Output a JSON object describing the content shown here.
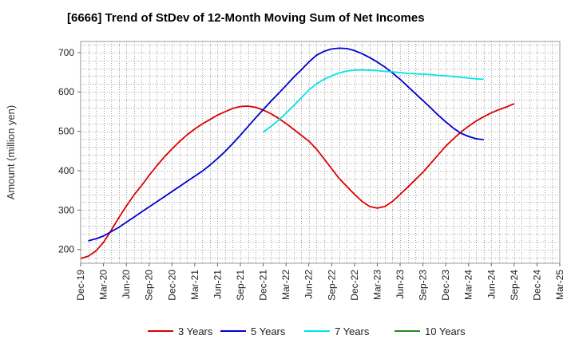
{
  "chart_data": {
    "type": "line",
    "title": "[6666]  Trend of StDev of 12-Month Moving Sum of Net Incomes",
    "xlabel": "",
    "ylabel": "Amount (million yen)",
    "ylim": [
      165,
      728
    ],
    "yticks": [
      200,
      300,
      400,
      500,
      600,
      700
    ],
    "x_ticks": [
      "Dec-19",
      "Mar-20",
      "Jun-20",
      "Sep-20",
      "Dec-20",
      "Mar-21",
      "Jun-21",
      "Sep-21",
      "Dec-21",
      "Mar-22",
      "Jun-22",
      "Sep-22",
      "Dec-22",
      "Mar-23",
      "Jun-23",
      "Sep-23",
      "Dec-23",
      "Mar-24",
      "Jun-24",
      "Sep-24",
      "Dec-24",
      "Mar-25"
    ],
    "grid": true,
    "legend_position": "bottom",
    "series": [
      {
        "name": "3 Years",
        "color": "#dd0000",
        "values": [
          177,
          183,
          196,
          218,
          248,
          280,
          310,
          338,
          362,
          388,
          412,
          435,
          455,
          474,
          491,
          506,
          519,
          530,
          541,
          550,
          558,
          563,
          564,
          561,
          554,
          545,
          533,
          520,
          505,
          490,
          475,
          455,
          430,
          405,
          380,
          360,
          340,
          322,
          309,
          305,
          309,
          322,
          340,
          358,
          377,
          396,
          418,
          440,
          462,
          481,
          498,
          513,
          526,
          537,
          547,
          555,
          562,
          570
        ]
      },
      {
        "name": "5 Years",
        "color": "#0000cc",
        "values": [
          null,
          222,
          227,
          234,
          245,
          256,
          269,
          282,
          295,
          308,
          321,
          334,
          347,
          360,
          373,
          386,
          399,
          414,
          431,
          449,
          469,
          490,
          512,
          534,
          555,
          576,
          596,
          616,
          637,
          656,
          676,
          693,
          703,
          709,
          711,
          710,
          705,
          697,
          687,
          676,
          663,
          648,
          632,
          614,
          596,
          578,
          560,
          541,
          524,
          508,
          495,
          487,
          481,
          479
        ]
      },
      {
        "name": "7 Years",
        "color": "#00e5e5",
        "values": [
          null,
          null,
          null,
          null,
          null,
          null,
          null,
          null,
          null,
          null,
          null,
          null,
          null,
          null,
          null,
          null,
          null,
          null,
          null,
          null,
          null,
          null,
          null,
          null,
          498,
          512,
          528,
          546,
          565,
          585,
          605,
          620,
          632,
          641,
          648,
          653,
          655,
          656,
          655,
          654,
          652,
          651,
          649,
          647,
          646,
          645,
          644,
          642,
          641,
          639,
          637,
          635,
          633,
          632
        ]
      },
      {
        "name": "10 Years",
        "color": "#228b22",
        "values": []
      }
    ]
  }
}
